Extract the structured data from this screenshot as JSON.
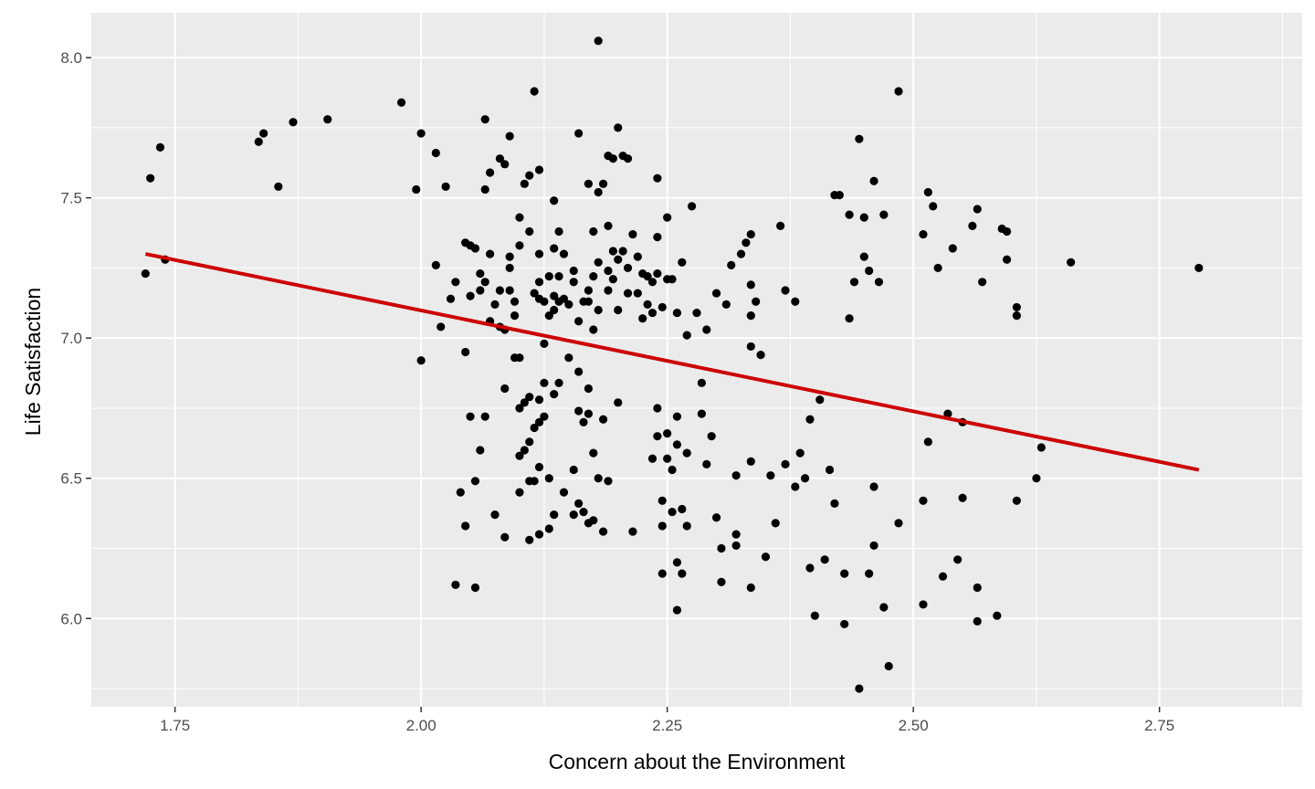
{
  "chart_data": {
    "type": "scatter",
    "title": "",
    "xlabel": "Concern about the Environment",
    "ylabel": "Life Satisfaction",
    "xlim": [
      1.665,
      2.895
    ],
    "ylim": [
      5.685,
      8.16
    ],
    "x_ticks": [
      1.75,
      2.0,
      2.25,
      2.5,
      2.75
    ],
    "x_tick_labels": [
      "1.75",
      "2.00",
      "2.25",
      "2.50",
      "2.75"
    ],
    "y_ticks": [
      6.0,
      6.5,
      7.0,
      7.5,
      8.0
    ],
    "y_tick_labels": [
      "6.0",
      "6.5",
      "7.0",
      "7.5",
      "8.0"
    ],
    "grid": true,
    "background": "#ebebeb",
    "point_color": "#000000",
    "trend_color": "#cc0000",
    "trend_line": {
      "x": [
        1.72,
        2.79
      ],
      "y": [
        7.3,
        6.53
      ]
    },
    "points": [
      [
        1.72,
        7.23
      ],
      [
        1.725,
        7.57
      ],
      [
        1.735,
        7.68
      ],
      [
        1.74,
        7.28
      ],
      [
        1.835,
        7.7
      ],
      [
        1.84,
        7.73
      ],
      [
        1.855,
        7.54
      ],
      [
        1.87,
        7.77
      ],
      [
        1.905,
        7.78
      ],
      [
        1.98,
        7.84
      ],
      [
        1.995,
        7.53
      ],
      [
        2.0,
        7.73
      ],
      [
        2.0,
        6.92
      ],
      [
        2.015,
        7.66
      ],
      [
        2.015,
        7.26
      ],
      [
        2.02,
        7.04
      ],
      [
        2.025,
        7.54
      ],
      [
        2.03,
        7.14
      ],
      [
        2.035,
        7.2
      ],
      [
        2.035,
        6.12
      ],
      [
        2.04,
        6.45
      ],
      [
        2.045,
        7.34
      ],
      [
        2.045,
        6.95
      ],
      [
        2.045,
        6.33
      ],
      [
        2.05,
        7.33
      ],
      [
        2.05,
        7.15
      ],
      [
        2.05,
        6.72
      ],
      [
        2.055,
        7.32
      ],
      [
        2.055,
        6.49
      ],
      [
        2.055,
        6.11
      ],
      [
        2.06,
        7.23
      ],
      [
        2.06,
        7.17
      ],
      [
        2.06,
        6.6
      ],
      [
        2.065,
        7.53
      ],
      [
        2.065,
        7.78
      ],
      [
        2.065,
        7.2
      ],
      [
        2.065,
        6.72
      ],
      [
        2.07,
        7.59
      ],
      [
        2.07,
        7.3
      ],
      [
        2.07,
        7.06
      ],
      [
        2.075,
        7.12
      ],
      [
        2.075,
        6.37
      ],
      [
        2.08,
        7.64
      ],
      [
        2.08,
        7.17
      ],
      [
        2.08,
        7.04
      ],
      [
        2.085,
        7.62
      ],
      [
        2.085,
        7.03
      ],
      [
        2.085,
        6.82
      ],
      [
        2.085,
        6.29
      ],
      [
        2.09,
        7.72
      ],
      [
        2.09,
        7.29
      ],
      [
        2.09,
        7.25
      ],
      [
        2.09,
        7.17
      ],
      [
        2.095,
        7.13
      ],
      [
        2.095,
        7.08
      ],
      [
        2.095,
        6.93
      ],
      [
        2.1,
        7.43
      ],
      [
        2.1,
        7.33
      ],
      [
        2.1,
        6.93
      ],
      [
        2.1,
        6.75
      ],
      [
        2.1,
        6.58
      ],
      [
        2.1,
        6.45
      ],
      [
        2.105,
        7.55
      ],
      [
        2.105,
        6.77
      ],
      [
        2.105,
        6.6
      ],
      [
        2.11,
        7.58
      ],
      [
        2.11,
        7.38
      ],
      [
        2.11,
        6.79
      ],
      [
        2.11,
        6.63
      ],
      [
        2.11,
        6.49
      ],
      [
        2.11,
        6.28
      ],
      [
        2.115,
        7.88
      ],
      [
        2.115,
        7.16
      ],
      [
        2.115,
        6.68
      ],
      [
        2.115,
        6.49
      ],
      [
        2.12,
        7.6
      ],
      [
        2.12,
        7.3
      ],
      [
        2.12,
        7.2
      ],
      [
        2.12,
        7.14
      ],
      [
        2.12,
        6.78
      ],
      [
        2.12,
        6.7
      ],
      [
        2.12,
        6.54
      ],
      [
        2.12,
        6.3
      ],
      [
        2.125,
        7.13
      ],
      [
        2.125,
        6.98
      ],
      [
        2.125,
        6.84
      ],
      [
        2.125,
        6.72
      ],
      [
        2.13,
        7.22
      ],
      [
        2.13,
        7.08
      ],
      [
        2.13,
        6.5
      ],
      [
        2.13,
        6.32
      ],
      [
        2.135,
        7.49
      ],
      [
        2.135,
        7.32
      ],
      [
        2.135,
        7.15
      ],
      [
        2.135,
        7.1
      ],
      [
        2.135,
        6.8
      ],
      [
        2.135,
        6.37
      ],
      [
        2.14,
        7.38
      ],
      [
        2.14,
        7.22
      ],
      [
        2.14,
        7.13
      ],
      [
        2.14,
        6.84
      ],
      [
        2.145,
        7.3
      ],
      [
        2.145,
        7.14
      ],
      [
        2.145,
        6.45
      ],
      [
        2.15,
        7.12
      ],
      [
        2.15,
        6.93
      ],
      [
        2.155,
        7.24
      ],
      [
        2.155,
        7.2
      ],
      [
        2.155,
        6.53
      ],
      [
        2.155,
        6.37
      ],
      [
        2.16,
        7.73
      ],
      [
        2.16,
        7.06
      ],
      [
        2.16,
        6.88
      ],
      [
        2.16,
        6.74
      ],
      [
        2.16,
        6.41
      ],
      [
        2.165,
        7.13
      ],
      [
        2.165,
        6.7
      ],
      [
        2.165,
        6.38
      ],
      [
        2.17,
        7.55
      ],
      [
        2.17,
        7.17
      ],
      [
        2.17,
        7.13
      ],
      [
        2.17,
        6.82
      ],
      [
        2.17,
        6.73
      ],
      [
        2.17,
        6.34
      ],
      [
        2.175,
        7.38
      ],
      [
        2.175,
        7.22
      ],
      [
        2.175,
        7.03
      ],
      [
        2.175,
        6.59
      ],
      [
        2.175,
        6.35
      ],
      [
        2.18,
        8.06
      ],
      [
        2.18,
        7.52
      ],
      [
        2.18,
        7.27
      ],
      [
        2.18,
        7.1
      ],
      [
        2.18,
        6.5
      ],
      [
        2.185,
        7.55
      ],
      [
        2.185,
        6.71
      ],
      [
        2.185,
        6.31
      ],
      [
        2.19,
        7.65
      ],
      [
        2.19,
        7.4
      ],
      [
        2.19,
        7.24
      ],
      [
        2.19,
        7.17
      ],
      [
        2.19,
        6.49
      ],
      [
        2.195,
        7.64
      ],
      [
        2.195,
        7.31
      ],
      [
        2.195,
        7.21
      ],
      [
        2.2,
        7.75
      ],
      [
        2.2,
        7.28
      ],
      [
        2.2,
        7.1
      ],
      [
        2.2,
        6.77
      ],
      [
        2.205,
        7.65
      ],
      [
        2.205,
        7.31
      ],
      [
        2.21,
        7.64
      ],
      [
        2.21,
        7.25
      ],
      [
        2.21,
        7.16
      ],
      [
        2.215,
        7.37
      ],
      [
        2.215,
        6.31
      ],
      [
        2.22,
        7.29
      ],
      [
        2.22,
        7.16
      ],
      [
        2.225,
        7.07
      ],
      [
        2.225,
        7.23
      ],
      [
        2.23,
        7.22
      ],
      [
        2.23,
        7.12
      ],
      [
        2.235,
        7.2
      ],
      [
        2.235,
        7.09
      ],
      [
        2.235,
        6.57
      ],
      [
        2.24,
        7.57
      ],
      [
        2.24,
        7.36
      ],
      [
        2.24,
        7.23
      ],
      [
        2.24,
        6.75
      ],
      [
        2.24,
        6.65
      ],
      [
        2.245,
        7.11
      ],
      [
        2.245,
        6.42
      ],
      [
        2.245,
        6.33
      ],
      [
        2.245,
        6.16
      ],
      [
        2.25,
        7.43
      ],
      [
        2.25,
        7.21
      ],
      [
        2.25,
        6.66
      ],
      [
        2.25,
        6.57
      ],
      [
        2.255,
        7.21
      ],
      [
        2.255,
        6.53
      ],
      [
        2.255,
        6.38
      ],
      [
        2.26,
        7.09
      ],
      [
        2.26,
        6.72
      ],
      [
        2.26,
        6.62
      ],
      [
        2.26,
        6.2
      ],
      [
        2.26,
        6.03
      ],
      [
        2.265,
        7.27
      ],
      [
        2.265,
        6.39
      ],
      [
        2.265,
        6.16
      ],
      [
        2.27,
        7.01
      ],
      [
        2.27,
        6.59
      ],
      [
        2.27,
        6.33
      ],
      [
        2.275,
        7.47
      ],
      [
        2.28,
        7.09
      ],
      [
        2.285,
        6.84
      ],
      [
        2.285,
        6.73
      ],
      [
        2.29,
        7.03
      ],
      [
        2.29,
        6.55
      ],
      [
        2.295,
        6.65
      ],
      [
        2.3,
        7.16
      ],
      [
        2.3,
        6.36
      ],
      [
        2.305,
        6.25
      ],
      [
        2.305,
        6.13
      ],
      [
        2.31,
        7.12
      ],
      [
        2.315,
        7.26
      ],
      [
        2.32,
        6.51
      ],
      [
        2.32,
        6.3
      ],
      [
        2.32,
        6.26
      ],
      [
        2.325,
        7.3
      ],
      [
        2.33,
        7.34
      ],
      [
        2.335,
        7.37
      ],
      [
        2.335,
        7.19
      ],
      [
        2.335,
        7.08
      ],
      [
        2.335,
        6.97
      ],
      [
        2.335,
        6.56
      ],
      [
        2.335,
        6.11
      ],
      [
        2.34,
        7.13
      ],
      [
        2.345,
        6.94
      ],
      [
        2.35,
        6.22
      ],
      [
        2.355,
        6.51
      ],
      [
        2.36,
        6.34
      ],
      [
        2.365,
        7.4
      ],
      [
        2.37,
        7.17
      ],
      [
        2.37,
        6.55
      ],
      [
        2.38,
        7.13
      ],
      [
        2.38,
        6.47
      ],
      [
        2.385,
        6.59
      ],
      [
        2.39,
        6.5
      ],
      [
        2.395,
        6.71
      ],
      [
        2.395,
        6.18
      ],
      [
        2.4,
        6.01
      ],
      [
        2.405,
        6.78
      ],
      [
        2.41,
        6.21
      ],
      [
        2.415,
        6.53
      ],
      [
        2.42,
        7.51
      ],
      [
        2.42,
        6.41
      ],
      [
        2.425,
        7.51
      ],
      [
        2.43,
        5.98
      ],
      [
        2.43,
        6.16
      ],
      [
        2.435,
        7.44
      ],
      [
        2.435,
        7.07
      ],
      [
        2.44,
        7.2
      ],
      [
        2.445,
        7.71
      ],
      [
        2.445,
        5.75
      ],
      [
        2.45,
        7.43
      ],
      [
        2.45,
        7.29
      ],
      [
        2.455,
        6.16
      ],
      [
        2.455,
        7.24
      ],
      [
        2.46,
        7.56
      ],
      [
        2.46,
        6.47
      ],
      [
        2.46,
        6.26
      ],
      [
        2.465,
        7.2
      ],
      [
        2.47,
        7.44
      ],
      [
        2.47,
        6.04
      ],
      [
        2.475,
        5.83
      ],
      [
        2.485,
        7.88
      ],
      [
        2.485,
        6.34
      ],
      [
        2.51,
        7.37
      ],
      [
        2.51,
        6.42
      ],
      [
        2.51,
        6.05
      ],
      [
        2.515,
        7.52
      ],
      [
        2.515,
        6.63
      ],
      [
        2.52,
        7.47
      ],
      [
        2.525,
        7.25
      ],
      [
        2.53,
        6.15
      ],
      [
        2.535,
        6.73
      ],
      [
        2.54,
        7.32
      ],
      [
        2.545,
        6.21
      ],
      [
        2.55,
        6.7
      ],
      [
        2.55,
        6.43
      ],
      [
        2.56,
        7.4
      ],
      [
        2.565,
        7.46
      ],
      [
        2.565,
        6.11
      ],
      [
        2.565,
        5.99
      ],
      [
        2.57,
        7.2
      ],
      [
        2.585,
        6.01
      ],
      [
        2.59,
        7.39
      ],
      [
        2.595,
        7.38
      ],
      [
        2.595,
        7.28
      ],
      [
        2.605,
        7.11
      ],
      [
        2.605,
        7.08
      ],
      [
        2.605,
        6.42
      ],
      [
        2.625,
        6.5
      ],
      [
        2.63,
        6.61
      ],
      [
        2.66,
        7.27
      ],
      [
        2.79,
        7.25
      ]
    ]
  }
}
